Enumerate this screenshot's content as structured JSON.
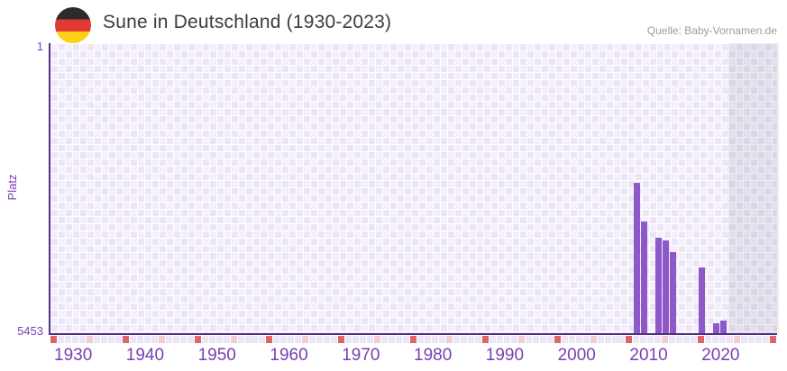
{
  "header": {
    "flag_icon": "germany-flag",
    "title": "Sune in Deutschland (1930-2023)",
    "source": "Quelle: Baby-Vornamen.de"
  },
  "chart_data": {
    "type": "bar",
    "title": "Sune in Deutschland (1930-2023)",
    "source": "Quelle: Baby-Vornamen.de",
    "ylabel": "Platz",
    "xlabel": "",
    "grid": true,
    "y_axis": {
      "best_rank_label": "1",
      "worst_rank_label": "5453",
      "min": 1,
      "max": 5453,
      "inverted": true
    },
    "x_axis": {
      "start_year": 1930,
      "end_year": 2030,
      "data_end_year": 2023,
      "tick_years": [
        1930,
        1940,
        1950,
        1960,
        1970,
        1980,
        1990,
        2000,
        2010,
        2020
      ],
      "decade_marker_years_modulo": 10,
      "half_decade_marker_years_modulo": 5
    },
    "series": [
      {
        "name": "Platz",
        "points": [
          {
            "year": 2011,
            "rank": 2630
          },
          {
            "year": 2012,
            "rank": 3350
          },
          {
            "year": 2014,
            "rank": 3660
          },
          {
            "year": 2015,
            "rank": 3700
          },
          {
            "year": 2016,
            "rank": 3920
          },
          {
            "year": 2020,
            "rank": 4220
          },
          {
            "year": 2022,
            "rank": 5270
          },
          {
            "year": 2023,
            "rank": 5210
          }
        ]
      }
    ],
    "colors": {
      "bar": "#8e58c8",
      "axis": "#532d86",
      "grid_cell_a": "#ebe5f6",
      "grid_cell_b": "#f4f0fb",
      "tick_default": "#ebe5f6",
      "tick_decade": "#e0646b",
      "tick_half_decade": "#f2ccd5",
      "label_purple": "#7a3fb2",
      "title_color": "#3c3c3c",
      "source_color": "#9c9c9c",
      "future_overlay": "rgba(80,80,110,0.10)",
      "flag_black": "#2b2b2b",
      "flag_red": "#e03a34",
      "flag_gold": "#fdcf17"
    }
  }
}
